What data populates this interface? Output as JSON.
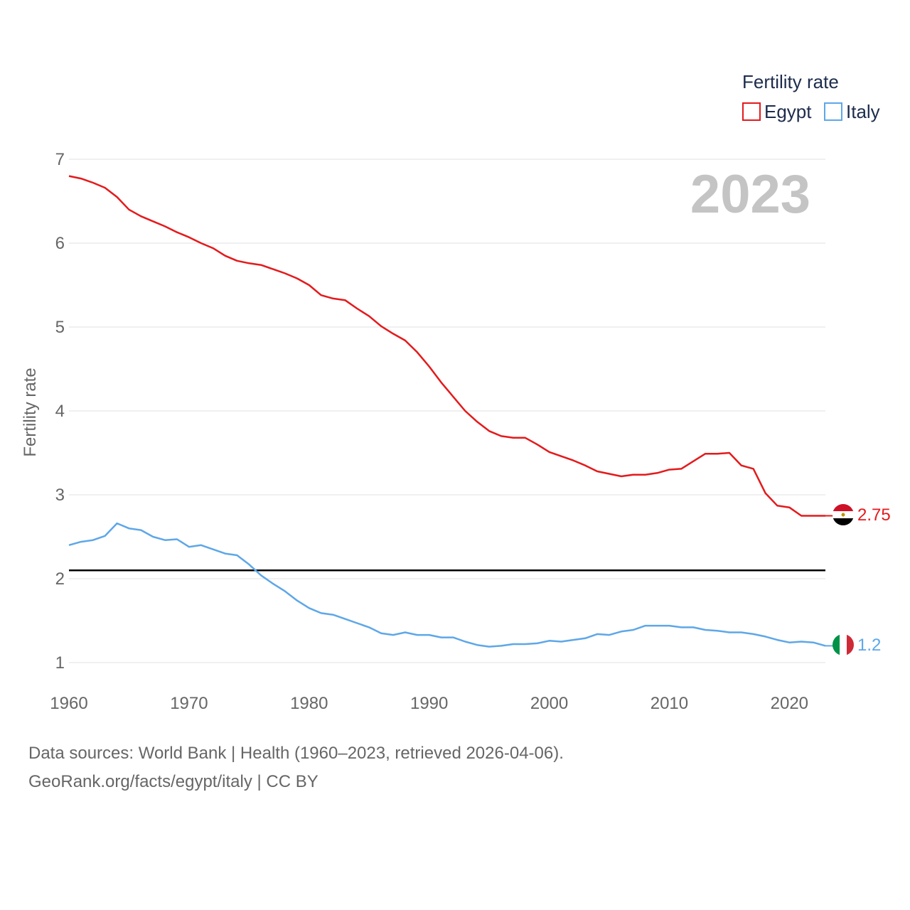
{
  "colors": {
    "egypt": "#e41a1c",
    "italy": "#5ea7e8",
    "grid": "#e6e6e6",
    "reference": "#000000",
    "text": "#666666",
    "legend_text": "#1d2c4c",
    "year": "#c4c4c4"
  },
  "chart_data": {
    "type": "line",
    "title": "",
    "legend_title": "Fertility rate",
    "legend_position": "top-right",
    "ylabel": "Fertility rate",
    "xlabel": "",
    "year_label": "2023",
    "xlim": [
      1960,
      2023
    ],
    "ylim": [
      1,
      7
    ],
    "x_ticks": [
      1960,
      1970,
      1980,
      1990,
      2000,
      2010,
      2020
    ],
    "y_ticks": [
      1,
      2,
      3,
      4,
      5,
      6,
      7
    ],
    "grid": true,
    "reference_line": 2.1,
    "x": [
      1960,
      1961,
      1962,
      1963,
      1964,
      1965,
      1966,
      1967,
      1968,
      1969,
      1970,
      1971,
      1972,
      1973,
      1974,
      1975,
      1976,
      1977,
      1978,
      1979,
      1980,
      1981,
      1982,
      1983,
      1984,
      1985,
      1986,
      1987,
      1988,
      1989,
      1990,
      1991,
      1992,
      1993,
      1994,
      1995,
      1996,
      1997,
      1998,
      1999,
      2000,
      2001,
      2002,
      2003,
      2004,
      2005,
      2006,
      2007,
      2008,
      2009,
      2010,
      2011,
      2012,
      2013,
      2014,
      2015,
      2016,
      2017,
      2018,
      2019,
      2020,
      2021,
      2022,
      2023
    ],
    "series": [
      {
        "name": "Egypt",
        "flag": "egypt-flag",
        "end_label": "2.75",
        "values": [
          6.8,
          6.77,
          6.72,
          6.66,
          6.55,
          6.4,
          6.32,
          6.26,
          6.2,
          6.13,
          6.07,
          6.0,
          5.94,
          5.85,
          5.79,
          5.76,
          5.74,
          5.69,
          5.64,
          5.58,
          5.5,
          5.38,
          5.34,
          5.32,
          5.22,
          5.13,
          5.01,
          4.92,
          4.84,
          4.7,
          4.53,
          4.34,
          4.17,
          4.0,
          3.87,
          3.76,
          3.7,
          3.68,
          3.68,
          3.6,
          3.51,
          3.46,
          3.41,
          3.35,
          3.28,
          3.25,
          3.22,
          3.24,
          3.24,
          3.26,
          3.3,
          3.31,
          3.4,
          3.49,
          3.49,
          3.5,
          3.35,
          3.31,
          3.02,
          2.87,
          2.85,
          2.75,
          2.75,
          2.75
        ]
      },
      {
        "name": "Italy",
        "flag": "italy-flag",
        "end_label": "1.2",
        "values": [
          2.4,
          2.44,
          2.46,
          2.51,
          2.66,
          2.6,
          2.58,
          2.5,
          2.46,
          2.47,
          2.38,
          2.4,
          2.35,
          2.3,
          2.28,
          2.17,
          2.04,
          1.94,
          1.85,
          1.74,
          1.65,
          1.59,
          1.57,
          1.52,
          1.47,
          1.42,
          1.35,
          1.33,
          1.36,
          1.33,
          1.33,
          1.3,
          1.3,
          1.25,
          1.21,
          1.19,
          1.2,
          1.22,
          1.22,
          1.23,
          1.26,
          1.25,
          1.27,
          1.29,
          1.34,
          1.33,
          1.37,
          1.39,
          1.44,
          1.44,
          1.44,
          1.42,
          1.42,
          1.39,
          1.38,
          1.36,
          1.36,
          1.34,
          1.31,
          1.27,
          1.24,
          1.25,
          1.24,
          1.2
        ]
      }
    ]
  },
  "footer": {
    "line1": "Data sources: World Bank | Health (1960–2023, retrieved 2026-04-06).",
    "line2": "GeoRank.org/facts/egypt/italy | CC BY"
  }
}
